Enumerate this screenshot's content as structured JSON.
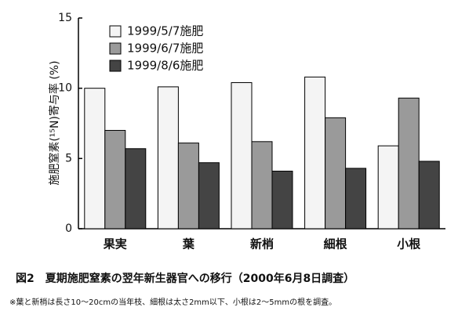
{
  "chart_data": {
    "type": "bar",
    "title": "図2　夏期施肥窒素の翌年新生器官への移行（2000年6月8日調査）",
    "footnote": "※葉と新梢は長さ10～20cmの当年枝、細根は太さ2mm以下、小根は2～5mmの根を調査。",
    "ylabel": "施肥窒素(¹⁵N)寄与率 (%)",
    "categories": [
      "果実",
      "葉",
      "新梢",
      "細根",
      "小根"
    ],
    "series": [
      {
        "name": "1999/5/7施肥",
        "color": "#f4f4f4",
        "values": [
          10.0,
          10.1,
          10.4,
          10.8,
          5.9
        ]
      },
      {
        "name": "1999/6/7施肥",
        "color": "#9a9a9a",
        "values": [
          7.0,
          6.1,
          6.2,
          7.9,
          9.3
        ]
      },
      {
        "name": "1999/8/6施肥",
        "color": "#444444",
        "values": [
          5.7,
          4.7,
          4.1,
          4.3,
          4.8
        ]
      }
    ],
    "ylim": [
      0,
      15
    ],
    "yticks": [
      0,
      5,
      10,
      15
    ],
    "grid": false,
    "legend": "upper left"
  }
}
